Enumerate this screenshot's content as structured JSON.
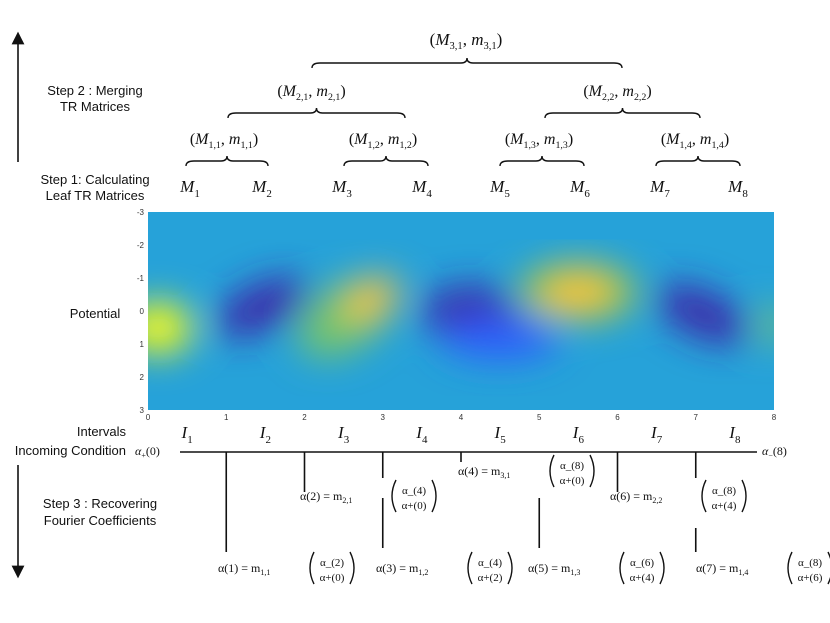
{
  "labels": {
    "step2_line1": "Step 2 : Merging",
    "step2_line2": "TR Matrices",
    "step1_line1": "Step 1: Calculating",
    "step1_line2": "Leaf TR Matrices",
    "potential": "Potential",
    "intervals": "Intervals",
    "incoming": "Incoming Condition",
    "step3_line1": "Step 3 : Recovering",
    "step3_line2": "Fourier Coefficients"
  },
  "tree": {
    "level3": [
      {
        "M": "M",
        "sub": "3,1",
        "m": "m"
      }
    ],
    "level2": [
      {
        "M": "M",
        "sub": "2,1",
        "m": "m"
      },
      {
        "M": "M",
        "sub": "2,2",
        "m": "m"
      }
    ],
    "level1": [
      {
        "M": "M",
        "sub": "1,1",
        "m": "m"
      },
      {
        "M": "M",
        "sub": "1,2",
        "m": "m"
      },
      {
        "M": "M",
        "sub": "1,3",
        "m": "m"
      },
      {
        "M": "M",
        "sub": "1,4",
        "m": "m"
      }
    ],
    "leaves": [
      {
        "M": "M",
        "sub": "1"
      },
      {
        "M": "M",
        "sub": "2"
      },
      {
        "M": "M",
        "sub": "3"
      },
      {
        "M": "M",
        "sub": "4"
      },
      {
        "M": "M",
        "sub": "5"
      },
      {
        "M": "M",
        "sub": "6"
      },
      {
        "M": "M",
        "sub": "7"
      },
      {
        "M": "M",
        "sub": "8"
      }
    ]
  },
  "potential_axes": {
    "x_ticks": [
      "0",
      "1",
      "2",
      "3",
      "4",
      "5",
      "6",
      "7",
      "8"
    ],
    "y_ticks": [
      "-3",
      "-2",
      "-1",
      "0",
      "1",
      "2",
      "3"
    ],
    "xlim": [
      0,
      8
    ],
    "ylim": [
      -3,
      3
    ],
    "colormap": [
      "#3e26a8",
      "#2f5ffc",
      "#1ea3d6",
      "#3bbf9a",
      "#a3c536",
      "#ffc43a",
      "#f9fb15"
    ]
  },
  "intervals": [
    {
      "I": "I",
      "sub": "1"
    },
    {
      "I": "I",
      "sub": "2"
    },
    {
      "I": "I",
      "sub": "3"
    },
    {
      "I": "I",
      "sub": "4"
    },
    {
      "I": "I",
      "sub": "5"
    },
    {
      "I": "I",
      "sub": "6"
    },
    {
      "I": "I",
      "sub": "7"
    },
    {
      "I": "I",
      "sub": "8"
    }
  ],
  "boundary": {
    "left": {
      "sym": "α",
      "sub": "+",
      "arg": "(0)"
    },
    "right": {
      "sym": "α",
      "sub": "−",
      "arg": "(8)"
    }
  },
  "coefficients": [
    {
      "lhs": "α(1) = m",
      "sub": "1,1",
      "top": "α_(2)",
      "bot": "α+(0)"
    },
    {
      "lhs": "α(2) = m",
      "sub": "2,1",
      "top": "α_(4)",
      "bot": "α+(0)"
    },
    {
      "lhs": "α(3) = m",
      "sub": "1,2",
      "top": "α_(4)",
      "bot": "α+(2)"
    },
    {
      "lhs": "α(4) = m",
      "sub": "3,1",
      "top": "α_(8)",
      "bot": "α+(0)"
    },
    {
      "lhs": "α(5) = m",
      "sub": "1,3",
      "top": "α_(6)",
      "bot": "α+(4)"
    },
    {
      "lhs": "α(6) = m",
      "sub": "2,2",
      "top": "α_(8)",
      "bot": "α+(4)"
    },
    {
      "lhs": "α(7) = m",
      "sub": "1,4",
      "top": "α_(8)",
      "bot": "α+(6)"
    }
  ]
}
